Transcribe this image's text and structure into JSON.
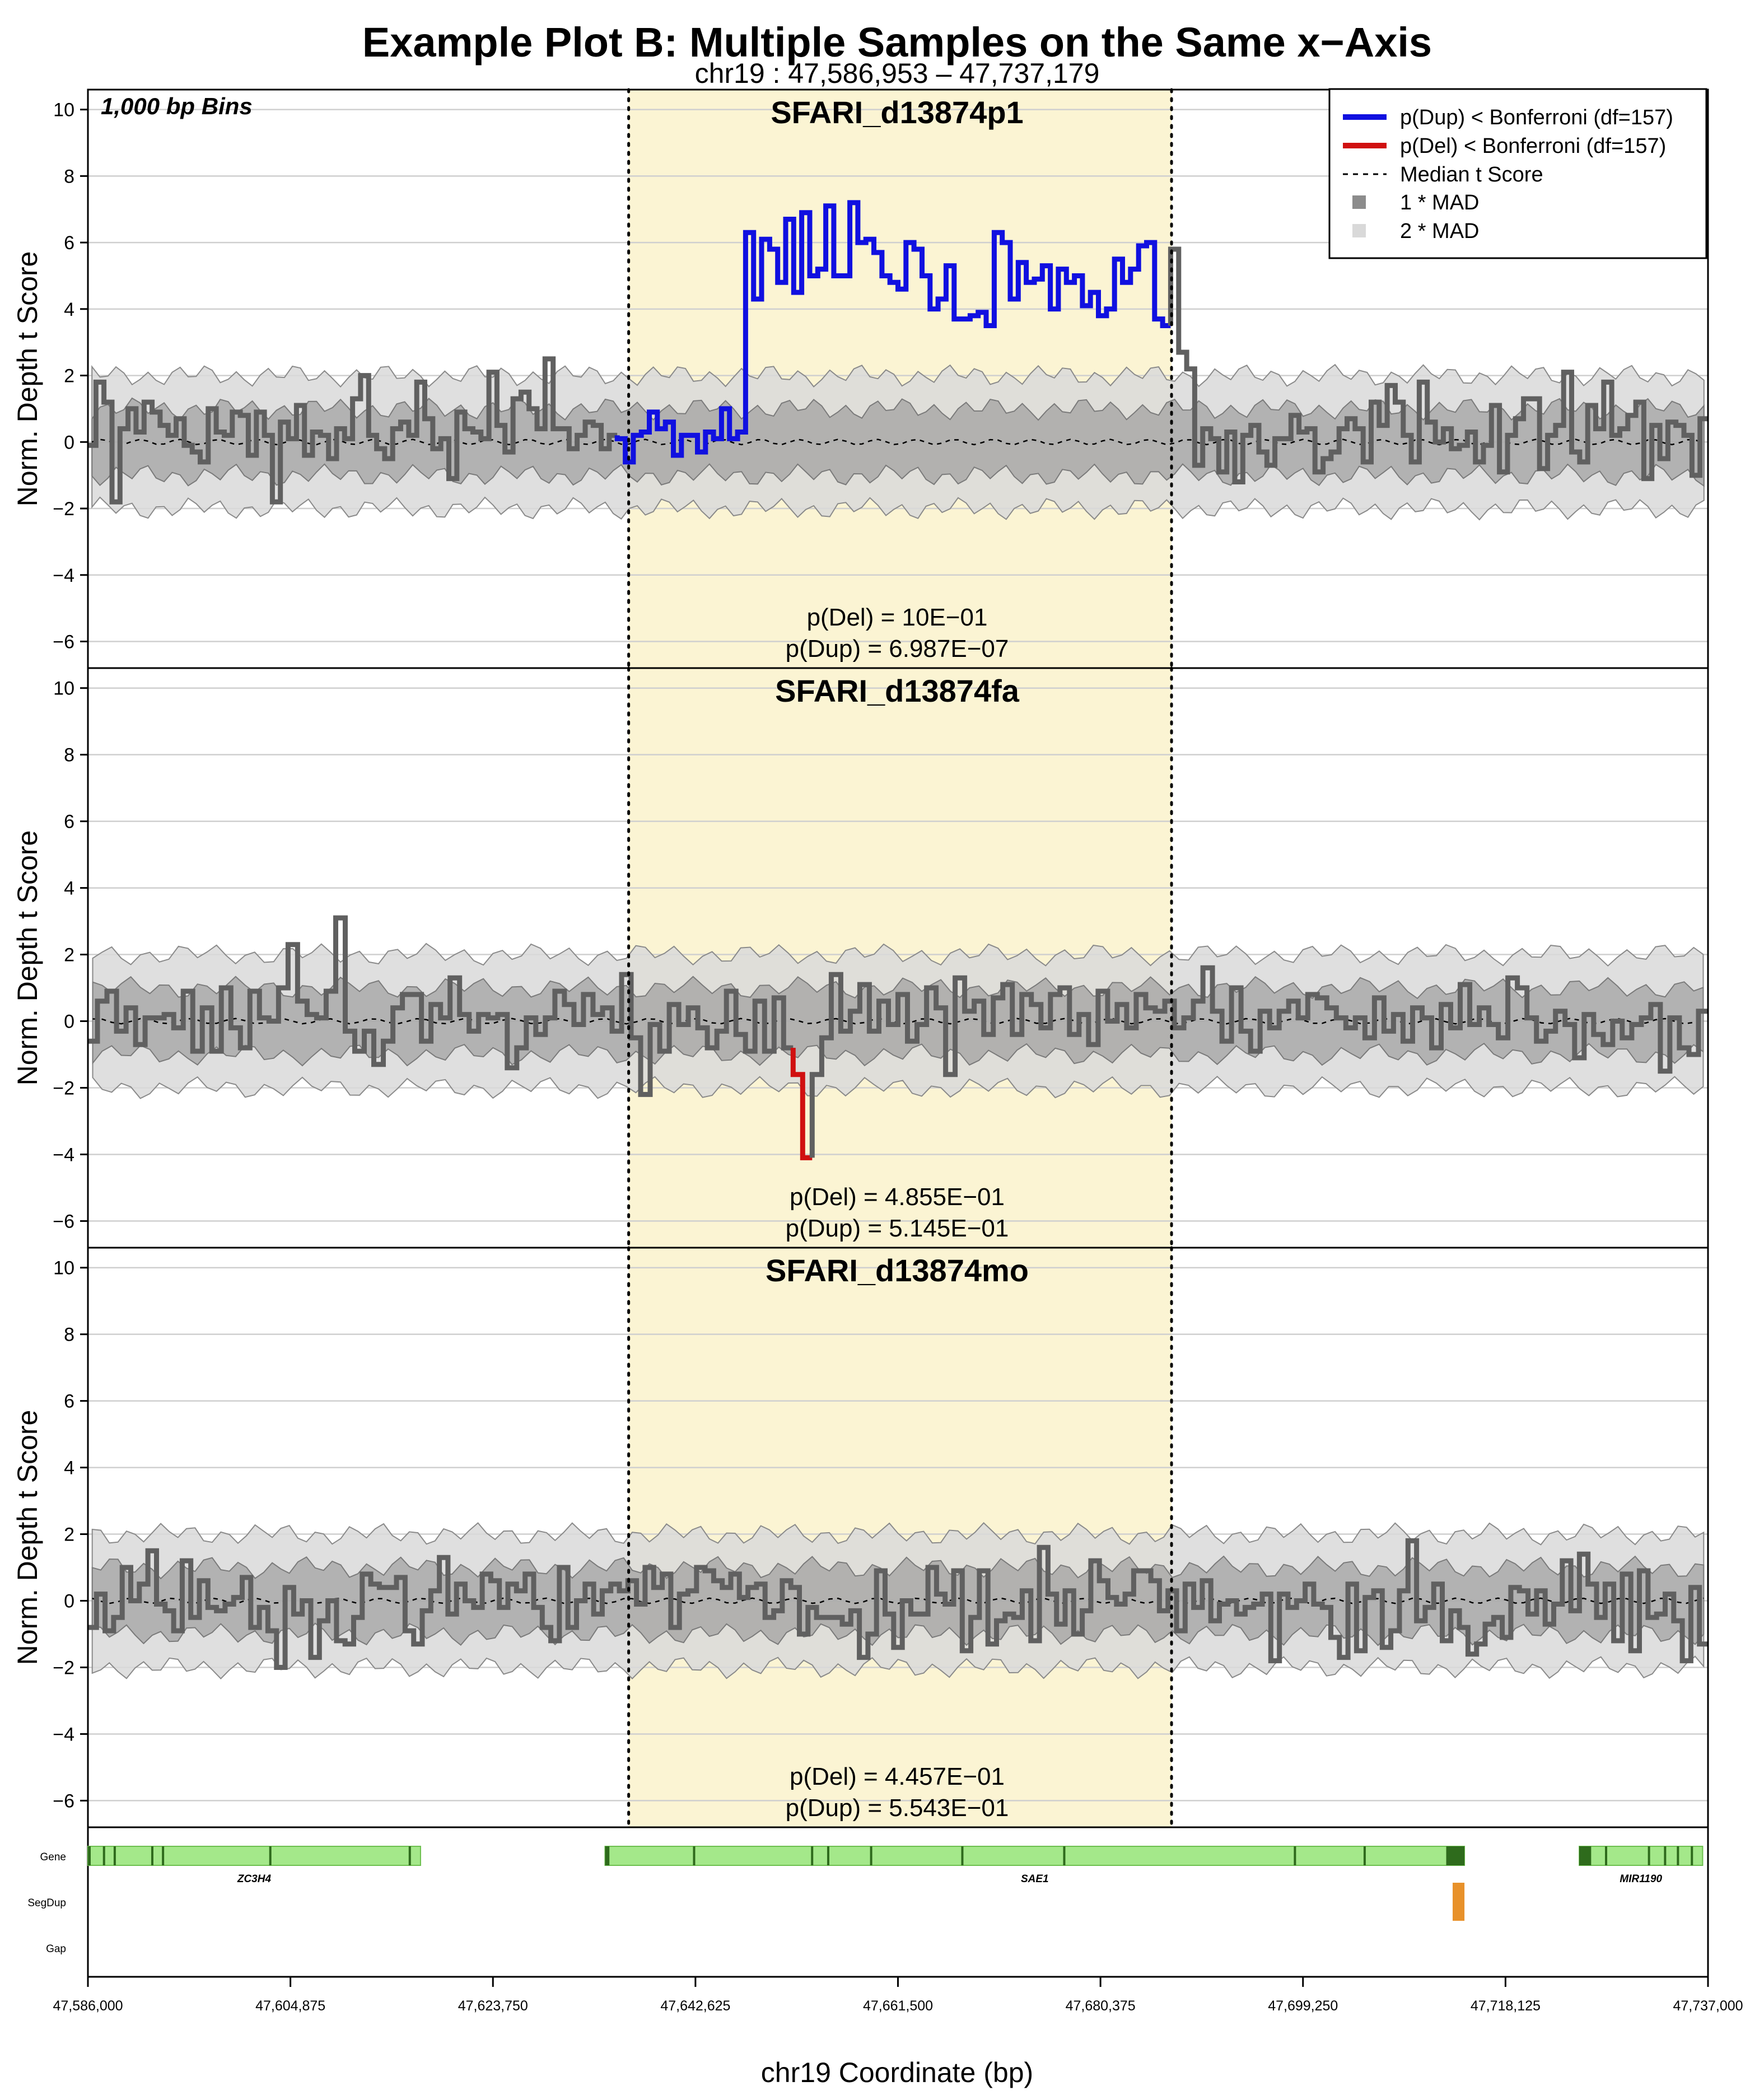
{
  "title": "Example Plot B: Multiple Samples on the Same x−Axis",
  "subtitle": "chr19 : 47,586,953 – 47,737,179",
  "bin_label": "1,000 bp Bins",
  "ylabel": "Norm. Depth t Score",
  "xlabel": "chr19 Coordinate (bp)",
  "colors": {
    "dup": "#1010e0",
    "del": "#d01010",
    "sample": "#606060",
    "highlight": "#fbf4d3",
    "mad1": "#8c8c8c",
    "mad2": "#d9d9d9",
    "gene": "#a4e88a",
    "gene_border": "#2e6b1c",
    "segdup": "#e8912a"
  },
  "legend": {
    "dup": "p(Dup) < Bonferroni (df=157)",
    "del": "p(Del) < Bonferroni (df=157)",
    "median": "Median t Score",
    "mad1": "1 * MAD",
    "mad2": "2 * MAD"
  },
  "chart_data": {
    "type": "line",
    "xlim": [
      47586000,
      47737000
    ],
    "ylim": [
      -6.8,
      10.6
    ],
    "yticks": [
      -6,
      -4,
      -2,
      0,
      2,
      4,
      6,
      8,
      10
    ],
    "xticks": [
      {
        "v": 47586000,
        "label": "47,586,000"
      },
      {
        "v": 47604875,
        "label": "47,604,875"
      },
      {
        "v": 47623750,
        "label": "47,623,750"
      },
      {
        "v": 47642625,
        "label": "47,642,625"
      },
      {
        "v": 47661500,
        "label": "47,661,500"
      },
      {
        "v": 47680375,
        "label": "47,680,375"
      },
      {
        "v": 47699250,
        "label": "47,699,250"
      },
      {
        "v": 47718125,
        "label": "47,718,125"
      },
      {
        "v": 47737000,
        "label": "47,737,000"
      }
    ],
    "highlight": [
      47636400,
      47687000
    ],
    "bin_size": 1000,
    "mad1": 1.0,
    "mad2": 2.0,
    "panels": [
      {
        "name": "SFARI_d13874p1",
        "p_del": "p(Del) = 10E−01",
        "p_dup": "p(Dup) = 6.987E−07",
        "anomaly": "dup",
        "anomaly_range": [
          47635200,
          47687000
        ],
        "values": [
          -0.1,
          1.8,
          1.2,
          -1.8,
          0.4,
          1.0,
          0.3,
          1.2,
          0.9,
          0.5,
          0.2,
          0.7,
          -0.1,
          -0.3,
          -0.6,
          1.0,
          0.3,
          0.2,
          0.9,
          0.8,
          -0.4,
          0.9,
          0.2,
          -1.8,
          0.6,
          0.1,
          1.1,
          -0.4,
          0.3,
          0.2,
          -0.5,
          0.4,
          0.1,
          1.3,
          2.0,
          0.2,
          -0.2,
          -0.5,
          0.4,
          0.6,
          0.2,
          1.8,
          0.7,
          -0.2,
          0.1,
          -1.1,
          0.9,
          0.4,
          0.3,
          0.1,
          2.1,
          0.5,
          -0.3,
          1.3,
          1.5,
          1.0,
          0.4,
          2.5,
          0.4,
          0.4,
          -0.2,
          0.2,
          0.6,
          0.5,
          -0.2,
          0.2,
          0.1,
          -0.6,
          0.2,
          0.3,
          0.9,
          0.4,
          0.6,
          -0.4,
          0.2,
          0.2,
          -0.3,
          0.3,
          0.1,
          1.0,
          0.1,
          0.3,
          6.3,
          4.3,
          6.1,
          5.8,
          4.8,
          6.7,
          4.5,
          6.9,
          5.0,
          5.2,
          7.1,
          5.0,
          5.0,
          7.2,
          6.0,
          6.1,
          5.7,
          5.0,
          4.8,
          4.6,
          6.0,
          5.8,
          5.0,
          4.0,
          4.3,
          5.3,
          3.7,
          3.7,
          3.8,
          3.9,
          3.5,
          6.3,
          6.0,
          4.3,
          5.4,
          4.8,
          4.9,
          5.3,
          4.0,
          5.2,
          4.8,
          5.0,
          4.1,
          4.5,
          3.8,
          4.0,
          5.5,
          4.8,
          5.2,
          5.9,
          6.0,
          3.7,
          3.5,
          5.8,
          2.7,
          2.2,
          -0.7,
          0.4,
          0.1,
          -0.9,
          0.3,
          -1.2,
          0.2,
          0.5,
          -0.3,
          -0.7,
          0.1,
          0.1,
          0.8,
          0.3,
          0.4,
          -0.9,
          -0.5,
          -0.3,
          0.4,
          0.7,
          0.4,
          -0.6,
          1.2,
          0.5,
          1.7,
          1.2,
          0.2,
          -0.6,
          1.8,
          0.6,
          0.0,
          0.4,
          -0.2,
          -0.1,
          0.3,
          -0.6,
          -0.1,
          1.1,
          -0.9,
          0.2,
          0.7,
          1.3,
          1.3,
          -0.8,
          0.2,
          0.5,
          2.1,
          -0.3,
          -0.6,
          1.1,
          0.4,
          1.8,
          0.2,
          0.4,
          0.8,
          1.2,
          -1.1,
          0.5,
          -0.5,
          0.6,
          0.5,
          0.2,
          -1.0,
          0.7
        ]
      },
      {
        "name": "SFARI_d13874fa",
        "p_del": "p(Del) = 4.855E−01",
        "p_dup": "p(Dup) = 5.145E−01",
        "anomaly": "del",
        "anomaly_range": [
          47651500,
          47653500
        ],
        "values": [
          -0.6,
          0.6,
          0.9,
          -0.3,
          0.4,
          -0.7,
          0.1,
          0.1,
          0.2,
          -0.2,
          0.9,
          -0.9,
          0.4,
          -0.9,
          1.0,
          -0.2,
          -0.8,
          0.9,
          0.1,
          0.0,
          1.0,
          2.3,
          0.6,
          0.2,
          0.1,
          0.9,
          3.1,
          -0.3,
          -0.9,
          -0.3,
          -1.3,
          -0.6,
          0.4,
          0.8,
          0.8,
          -0.6,
          0.5,
          0.1,
          1.3,
          0.2,
          -0.3,
          0.2,
          0.1,
          0.2,
          -1.4,
          -0.8,
          0.1,
          -0.4,
          0.1,
          0.9,
          0.5,
          -0.1,
          0.8,
          0.2,
          0.4,
          -0.3,
          1.4,
          -0.5,
          -2.2,
          -0.1,
          -0.9,
          0.5,
          -0.1,
          0.4,
          -0.2,
          -0.8,
          -0.3,
          0.9,
          -0.4,
          -0.9,
          0.6,
          -0.9,
          0.7,
          -0.8,
          -1.6,
          -4.1,
          -1.6,
          -0.5,
          1.4,
          -0.3,
          0.3,
          1.1,
          -0.3,
          0.6,
          -0.1,
          0.8,
          -0.6,
          -0.1,
          1.0,
          0.4,
          -1.6,
          1.3,
          0.3,
          0.6,
          -0.4,
          0.7,
          1.1,
          -0.4,
          0.8,
          0.5,
          -0.2,
          0.8,
          1.0,
          -0.4,
          0.2,
          -0.7,
          0.9,
          0.0,
          0.5,
          -0.2,
          0.8,
          0.4,
          0.3,
          0.6,
          -0.2,
          0.1,
          0.6,
          1.6,
          0.3,
          -0.6,
          1.0,
          -0.3,
          -0.9,
          0.3,
          -0.2,
          0.3,
          0.6,
          0.1,
          0.8,
          0.7,
          0.4,
          0.1,
          -0.2,
          0.1,
          -0.5,
          0.7,
          -0.3,
          0.2,
          -0.6,
          0.4,
          0.1,
          -0.8,
          0.5,
          -0.2,
          1.1,
          -0.1,
          0.4,
          -0.1,
          -0.5,
          1.3,
          1.0,
          0.1,
          -0.6,
          -0.3,
          0.3,
          -0.1,
          -1.1,
          0.2,
          -0.4,
          -0.7,
          0.0,
          -0.5,
          -0.1,
          0.1,
          0.5,
          -1.5,
          0.1,
          -0.8,
          -1.0,
          0.3
        ]
      },
      {
        "name": "SFARI_d13874mo",
        "p_del": "p(Del) = 4.457E−01",
        "p_dup": "p(Dup) = 5.543E−01",
        "anomaly": "none",
        "anomaly_range": [
          0,
          0
        ],
        "values": [
          -0.8,
          0.2,
          -0.9,
          -0.5,
          1.0,
          0.0,
          0.5,
          1.5,
          -0.1,
          -0.3,
          -0.9,
          1.2,
          -0.5,
          0.6,
          -0.2,
          -0.3,
          -0.1,
          0.1,
          0.7,
          -0.8,
          -0.2,
          -0.9,
          -2.0,
          0.4,
          -0.4,
          0.0,
          -1.7,
          -0.6,
          0.0,
          -1.2,
          -1.3,
          -0.5,
          0.8,
          0.5,
          0.4,
          0.4,
          0.7,
          -0.9,
          -1.3,
          -0.3,
          0.3,
          1.3,
          -0.4,
          0.5,
          0.0,
          -0.2,
          0.8,
          0.6,
          -0.2,
          0.5,
          0.3,
          0.8,
          -0.2,
          -0.8,
          -1.2,
          1.0,
          -0.8,
          0.0,
          0.5,
          -0.4,
          0.3,
          0.5,
          0.3,
          0.6,
          -0.1,
          1.0,
          0.4,
          0.8,
          -0.8,
          0.2,
          0.3,
          1.0,
          0.9,
          0.6,
          0.4,
          0.8,
          0.1,
          0.4,
          0.5,
          -0.5,
          -0.3,
          0.6,
          0.4,
          -1.0,
          -0.2,
          -0.5,
          -0.5,
          -0.5,
          -0.7,
          -0.3,
          -1.7,
          -1.0,
          0.9,
          -0.4,
          -1.4,
          0.0,
          -0.4,
          -0.4,
          1.0,
          0.2,
          -0.1,
          0.9,
          -1.5,
          -0.5,
          0.9,
          -1.3,
          -0.6,
          -0.4,
          -0.5,
          0.3,
          -1.2,
          1.6,
          0.2,
          -0.7,
          0.3,
          -1.0,
          -0.3,
          1.2,
          0.6,
          0.1,
          -0.1,
          0.2,
          0.9,
          0.9,
          0.6,
          -0.3,
          0.3,
          -0.9,
          0.5,
          -0.2,
          0.6,
          -0.6,
          -0.1,
          0.0,
          -0.4,
          -0.2,
          -0.1,
          0.2,
          -1.8,
          0.2,
          -0.2,
          0.0,
          0.5,
          -0.1,
          -0.2,
          -1.1,
          -1.7,
          0.5,
          -1.5,
          0.1,
          0.3,
          -1.4,
          -0.9,
          0.3,
          1.8,
          -0.6,
          -0.2,
          0.5,
          -1.2,
          -0.3,
          -0.8,
          -1.6,
          -1.3,
          -0.7,
          -0.5,
          -1.1,
          0.4,
          0.3,
          -0.4,
          0.3,
          -0.7,
          -0.1,
          1.2,
          -0.3,
          1.4,
          0.5,
          -0.5,
          0.5,
          -1.2,
          0.8,
          -1.5,
          0.9,
          -0.5,
          -0.4,
          0.2,
          -0.6,
          -1.8,
          0.4,
          -1.3
        ]
      }
    ],
    "tracks": {
      "labels": [
        "Gene",
        "SegDup",
        "Gap"
      ],
      "genes": [
        {
          "name": "ZC3H4",
          "start": 47586000,
          "end": 47617000,
          "exons": [
            47587500,
            47588500,
            47592000,
            47593000,
            47603000,
            47616000
          ]
        },
        {
          "name": "SAE1",
          "start": 47634200,
          "end": 47714300,
          "exons": [
            47634500,
            47642500,
            47653500,
            47655000,
            47659000,
            47667500,
            47677000,
            47698500,
            47705000,
            47713500
          ]
        },
        {
          "name": "MIR1190",
          "start": 47725000,
          "end": 47736500,
          "exons": [
            47726000,
            47727500,
            47731500,
            47733000,
            47734200,
            47735500
          ]
        }
      ],
      "segdup": [
        {
          "start": 47713200,
          "end": 47714300
        }
      ]
    }
  }
}
